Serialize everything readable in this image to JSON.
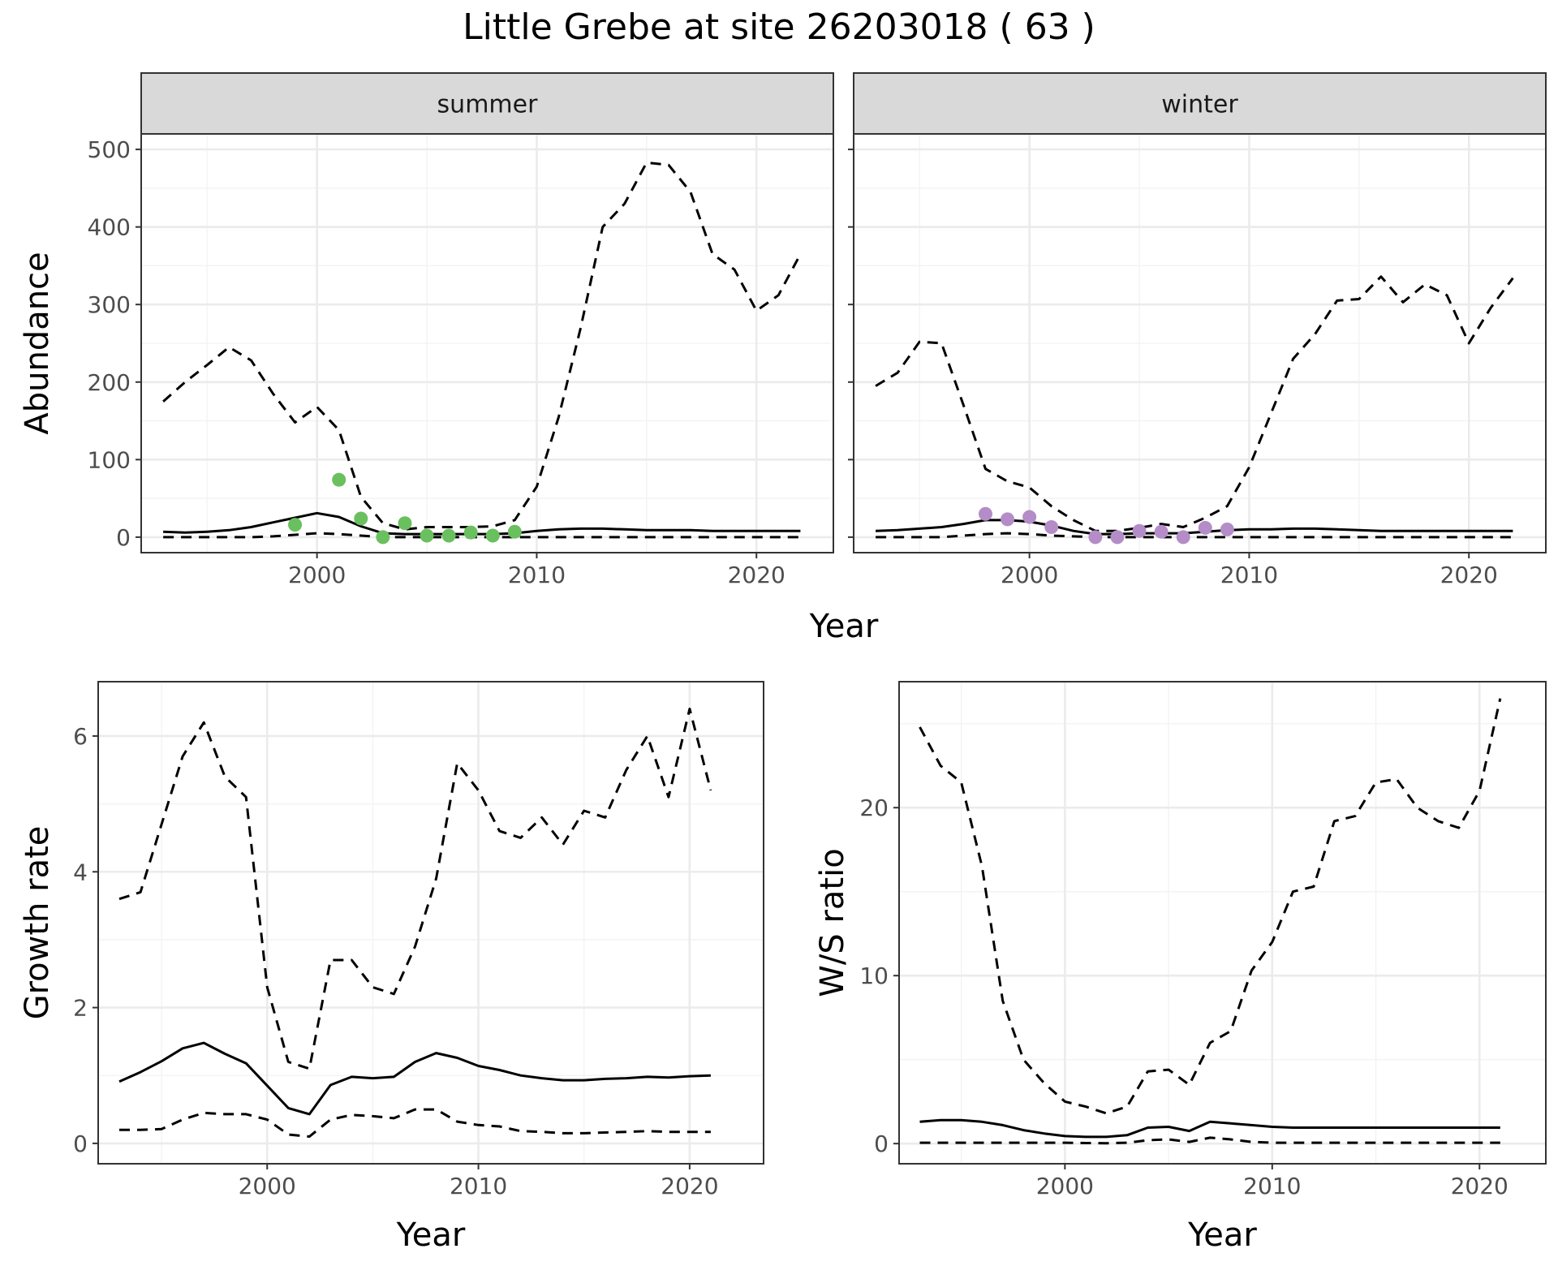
{
  "title": "Little Grebe at site 26203018 ( 63 )",
  "colors": {
    "summer_points": "#6abf5e",
    "winter_points": "#b48cc8",
    "line": "#000000"
  },
  "chart_data": [
    {
      "id": "abundance-summer",
      "type": "line",
      "strip": "summer",
      "ylabel": "Abundance",
      "xlabel": "",
      "xlim": [
        1992,
        2023.5
      ],
      "ylim": [
        -20,
        520
      ],
      "xticks": [
        2000,
        2010,
        2020
      ],
      "yticks": [
        0,
        100,
        200,
        300,
        400,
        500
      ],
      "x": [
        1993,
        1994,
        1995,
        1996,
        1997,
        1998,
        1999,
        2000,
        2001,
        2002,
        2003,
        2004,
        2005,
        2006,
        2007,
        2008,
        2009,
        2010,
        2011,
        2012,
        2013,
        2014,
        2015,
        2016,
        2017,
        2018,
        2019,
        2020,
        2021,
        2022
      ],
      "series": [
        {
          "name": "estimate",
          "style": "solid",
          "values": [
            7,
            6,
            7,
            9,
            13,
            19,
            25,
            31,
            26,
            14,
            5,
            4,
            4,
            4,
            4,
            4,
            5,
            8,
            10,
            11,
            11,
            10,
            9,
            9,
            9,
            8,
            8,
            8,
            8,
            8
          ]
        },
        {
          "name": "upper",
          "style": "dashed",
          "values": [
            175,
            200,
            222,
            245,
            228,
            185,
            148,
            168,
            138,
            52,
            18,
            10,
            13,
            13,
            13,
            14,
            22,
            65,
            155,
            270,
            400,
            430,
            483,
            480,
            445,
            365,
            345,
            292,
            312,
            365
          ]
        },
        {
          "name": "lower",
          "style": "dashed",
          "values": [
            0,
            0,
            0,
            0,
            0,
            1,
            3,
            5,
            4,
            2,
            0,
            0,
            0,
            0,
            0,
            0,
            0,
            0,
            0,
            0,
            0,
            0,
            0,
            0,
            0,
            0,
            0,
            0,
            0,
            0
          ]
        }
      ],
      "points": {
        "name": "observed",
        "color": "#6abf5e",
        "x": [
          1999,
          2001,
          2002,
          2003,
          2004,
          2005,
          2006,
          2007,
          2008,
          2009
        ],
        "y": [
          16,
          74,
          24,
          0,
          18,
          2,
          2,
          6,
          2,
          7
        ]
      }
    },
    {
      "id": "abundance-winter",
      "type": "line",
      "strip": "winter",
      "ylabel": "",
      "xlabel": "",
      "xlim": [
        1992,
        2023.5
      ],
      "ylim": [
        -20,
        520
      ],
      "xticks": [
        2000,
        2010,
        2020
      ],
      "yticks": [],
      "x": [
        1993,
        1994,
        1995,
        1996,
        1997,
        1998,
        1999,
        2000,
        2001,
        2002,
        2003,
        2004,
        2005,
        2006,
        2007,
        2008,
        2009,
        2010,
        2011,
        2012,
        2013,
        2014,
        2015,
        2016,
        2017,
        2018,
        2019,
        2020,
        2021,
        2022
      ],
      "series": [
        {
          "name": "estimate",
          "style": "solid",
          "values": [
            8,
            9,
            11,
            13,
            17,
            22,
            22,
            20,
            15,
            8,
            4,
            4,
            5,
            5,
            5,
            7,
            9,
            10,
            10,
            11,
            11,
            10,
            9,
            8,
            8,
            8,
            8,
            8,
            8,
            8
          ]
        },
        {
          "name": "upper",
          "style": "dashed",
          "values": [
            195,
            212,
            252,
            250,
            170,
            88,
            72,
            64,
            40,
            22,
            8,
            8,
            12,
            17,
            13,
            25,
            40,
            90,
            160,
            230,
            262,
            305,
            307,
            336,
            303,
            326,
            312,
            250,
            296,
            334
          ]
        },
        {
          "name": "lower",
          "style": "dashed",
          "values": [
            0,
            0,
            0,
            0,
            2,
            4,
            5,
            4,
            2,
            1,
            0,
            0,
            0,
            0,
            0,
            0,
            0,
            0,
            0,
            0,
            0,
            0,
            0,
            0,
            0,
            0,
            0,
            0,
            0,
            0
          ]
        }
      ],
      "points": {
        "name": "observed",
        "color": "#b48cc8",
        "x": [
          1998,
          1999,
          2000,
          2001,
          2003,
          2004,
          2005,
          2006,
          2007,
          2008,
          2009
        ],
        "y": [
          30,
          23,
          26,
          13,
          0,
          0,
          8,
          7,
          0,
          12,
          10
        ]
      }
    },
    {
      "id": "growth-rate",
      "type": "line",
      "ylabel": "Growth rate",
      "xlabel": "Year",
      "xlim": [
        1992,
        2023.5
      ],
      "ylim": [
        -0.3,
        6.8
      ],
      "xticks": [
        2000,
        2010,
        2020
      ],
      "yticks": [
        0,
        2,
        4,
        6
      ],
      "x": [
        1993,
        1994,
        1995,
        1996,
        1997,
        1998,
        1999,
        2000,
        2001,
        2002,
        2003,
        2004,
        2005,
        2006,
        2007,
        2008,
        2009,
        2010,
        2011,
        2012,
        2013,
        2014,
        2015,
        2016,
        2017,
        2018,
        2019,
        2020,
        2021
      ],
      "series": [
        {
          "name": "estimate",
          "style": "solid",
          "values": [
            0.91,
            1.05,
            1.21,
            1.4,
            1.48,
            1.32,
            1.18,
            0.85,
            0.52,
            0.43,
            0.86,
            0.98,
            0.96,
            0.98,
            1.2,
            1.33,
            1.26,
            1.14,
            1.08,
            1.0,
            0.96,
            0.93,
            0.93,
            0.95,
            0.96,
            0.98,
            0.97,
            0.99,
            1.0
          ]
        },
        {
          "name": "upper",
          "style": "dashed",
          "values": [
            3.6,
            3.7,
            4.7,
            5.7,
            6.2,
            5.4,
            5.1,
            2.3,
            1.2,
            1.1,
            2.7,
            2.7,
            2.3,
            2.2,
            2.9,
            3.9,
            5.6,
            5.2,
            4.6,
            4.5,
            4.8,
            4.4,
            4.9,
            4.8,
            5.5,
            6.0,
            5.1,
            6.4,
            5.2
          ]
        },
        {
          "name": "lower",
          "style": "dashed",
          "values": [
            0.2,
            0.2,
            0.21,
            0.35,
            0.45,
            0.43,
            0.43,
            0.35,
            0.13,
            0.1,
            0.35,
            0.42,
            0.4,
            0.37,
            0.5,
            0.5,
            0.32,
            0.27,
            0.25,
            0.18,
            0.17,
            0.15,
            0.15,
            0.16,
            0.17,
            0.18,
            0.17,
            0.17,
            0.17
          ]
        }
      ]
    },
    {
      "id": "ws-ratio",
      "type": "line",
      "ylabel": "W/S ratio",
      "xlabel": "Year",
      "xlim": [
        1992,
        2023.2
      ],
      "ylim": [
        -1.2,
        27.5
      ],
      "xticks": [
        2000,
        2010,
        2020
      ],
      "yticks": [
        0,
        10,
        20
      ],
      "x": [
        1993,
        1994,
        1995,
        1996,
        1997,
        1998,
        1999,
        2000,
        2001,
        2002,
        2003,
        2004,
        2005,
        2006,
        2007,
        2008,
        2009,
        2010,
        2011,
        2012,
        2013,
        2014,
        2015,
        2016,
        2017,
        2018,
        2019,
        2020,
        2021
      ],
      "series": [
        {
          "name": "estimate",
          "style": "solid",
          "values": [
            1.3,
            1.4,
            1.4,
            1.3,
            1.1,
            0.8,
            0.6,
            0.45,
            0.4,
            0.4,
            0.5,
            0.95,
            1.0,
            0.75,
            1.3,
            1.2,
            1.1,
            1.0,
            0.95,
            0.95,
            0.95,
            0.95,
            0.95,
            0.95,
            0.95,
            0.95,
            0.95,
            0.95,
            0.95
          ]
        },
        {
          "name": "upper",
          "style": "dashed",
          "values": [
            24.8,
            22.5,
            21.5,
            16.5,
            8.5,
            5.0,
            3.6,
            2.5,
            2.2,
            1.8,
            2.2,
            4.3,
            4.4,
            3.5,
            6.0,
            6.7,
            10.3,
            12.0,
            15.0,
            15.3,
            19.2,
            19.5,
            21.5,
            21.7,
            20.0,
            19.2,
            18.8,
            21.0,
            26.5
          ]
        },
        {
          "name": "lower",
          "style": "dashed",
          "values": [
            0.05,
            0.05,
            0.05,
            0.05,
            0.05,
            0.05,
            0.05,
            0.05,
            0.03,
            0.02,
            0.05,
            0.2,
            0.25,
            0.1,
            0.35,
            0.25,
            0.1,
            0.05,
            0.05,
            0.05,
            0.05,
            0.05,
            0.05,
            0.05,
            0.05,
            0.05,
            0.05,
            0.05,
            0.05
          ]
        }
      ]
    }
  ]
}
